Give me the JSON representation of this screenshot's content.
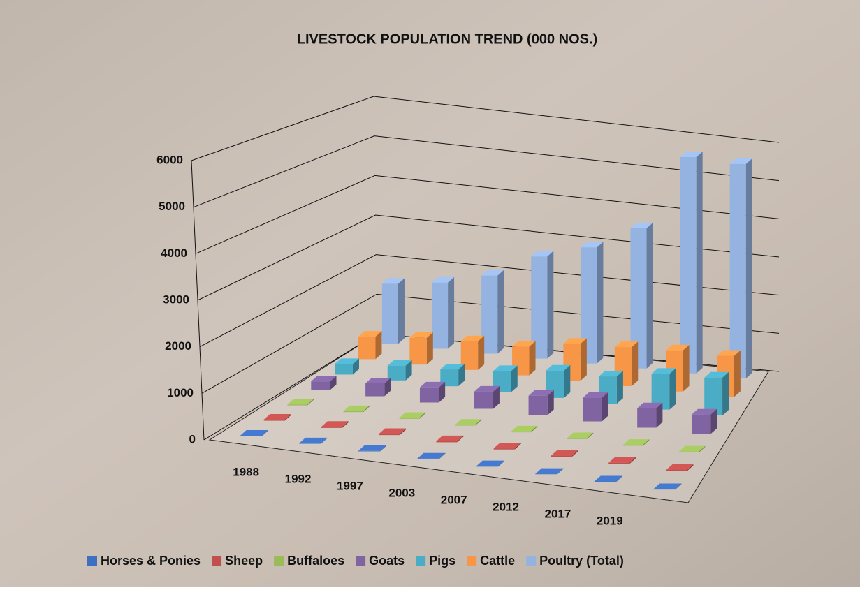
{
  "chart_data": {
    "type": "bar3d",
    "title": "LIVESTOCK POPULATION TREND (000 NOS.)",
    "categories": [
      "1988",
      "1992",
      "1997",
      "2003",
      "2007",
      "2012",
      "2017",
      "2019"
    ],
    "series": [
      {
        "name": "Horses & Ponies",
        "color": "#3f6fc0",
        "values": [
          10,
          10,
          10,
          10,
          10,
          10,
          10,
          10
        ]
      },
      {
        "name": "Sheep",
        "color": "#c0504d",
        "values": [
          25,
          25,
          25,
          25,
          25,
          25,
          25,
          25
        ]
      },
      {
        "name": "Buffaloes",
        "color": "#9bbb59",
        "values": [
          20,
          20,
          20,
          20,
          20,
          20,
          20,
          20
        ]
      },
      {
        "name": "Goats",
        "color": "#8064a2",
        "values": [
          200,
          300,
          350,
          400,
          450,
          550,
          450,
          450
        ]
      },
      {
        "name": "Pigs",
        "color": "#4bacc6",
        "values": [
          250,
          350,
          400,
          500,
          650,
          650,
          850,
          900
        ]
      },
      {
        "name": "Cattle",
        "color": "#f79646",
        "values": [
          550,
          650,
          700,
          700,
          900,
          950,
          1000,
          1000
        ]
      },
      {
        "name": "Poultry (Total)",
        "color": "#95b3e0",
        "values": [
          1500,
          1650,
          1950,
          2550,
          2900,
          3500,
          5400,
          5350
        ]
      }
    ],
    "ylim": [
      0,
      6000
    ],
    "yticks": [
      0,
      1000,
      2000,
      3000,
      4000,
      5000,
      6000
    ],
    "grid": true
  }
}
